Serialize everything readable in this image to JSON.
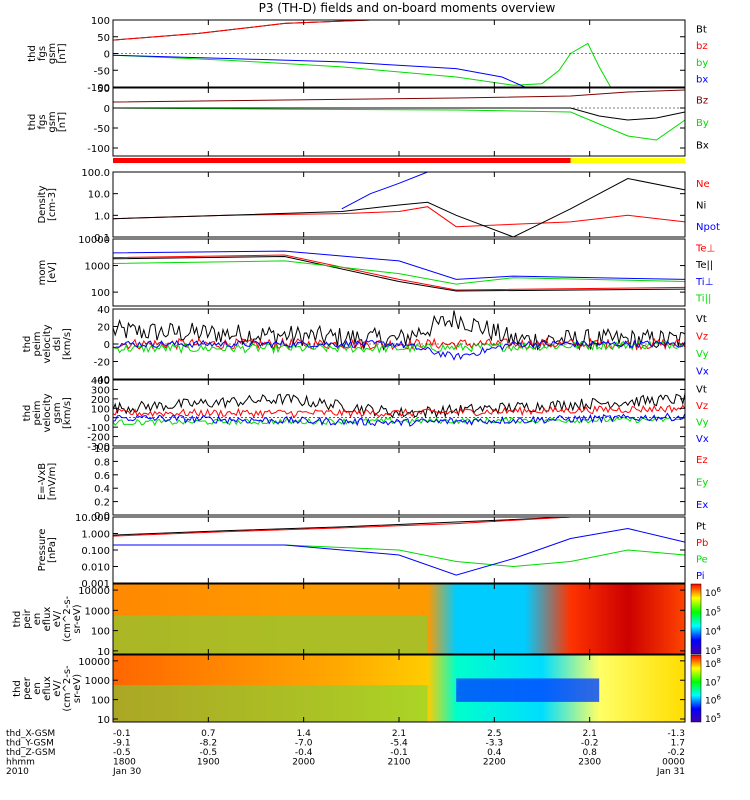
{
  "title": "P3 (TH-D) fields and on-board moments overview",
  "colors": {
    "black": "#000000",
    "red": "#ff0000",
    "green": "#00dd00",
    "blue": "#0000ff",
    "darkred": "#800000",
    "yellow": "#ffff00",
    "bg": "#ffffff"
  },
  "chart_data": [
    {
      "type": "line",
      "ylabel": [
        "thd",
        "fgs",
        "gsm",
        "[nT]"
      ],
      "ylim": [
        -100,
        100
      ],
      "yticks": [
        "100",
        "50",
        "0",
        "-50",
        "-100"
      ],
      "tickvals": [
        100,
        50,
        0,
        -50,
        -100
      ],
      "series": [
        {
          "name": "Bt",
          "color": "black",
          "x": [
            0,
            0.15,
            0.3,
            0.45
          ],
          "y": [
            40,
            60,
            90,
            120
          ]
        },
        {
          "name": "bz",
          "color": "red",
          "x": [
            0,
            0.15,
            0.3,
            0.45
          ],
          "y": [
            40,
            60,
            90,
            120
          ]
        },
        {
          "name": "by",
          "color": "green",
          "x": [
            0,
            0.2,
            0.4,
            0.6,
            0.7,
            0.75,
            0.78,
            0.8,
            0.83,
            0.85,
            0.87
          ],
          "y": [
            -5,
            -20,
            -40,
            -70,
            -95,
            -90,
            -50,
            0,
            30,
            -40,
            -150
          ]
        },
        {
          "name": "bx",
          "color": "blue",
          "x": [
            0,
            0.2,
            0.4,
            0.6,
            0.68,
            0.72
          ],
          "y": [
            -5,
            -15,
            -25,
            -45,
            -70,
            -100
          ]
        }
      ]
    },
    {
      "type": "line",
      "ylabel": [
        "thd",
        "fgs",
        "gsm",
        "[nT]"
      ],
      "ylim": [
        -120,
        50
      ],
      "yticks": [
        "50",
        "0",
        "-50",
        "-100"
      ],
      "tickvals": [
        50,
        0,
        -50,
        -100
      ],
      "series": [
        {
          "name": "Bz",
          "color": "darkred",
          "x": [
            0,
            0.3,
            0.6,
            0.8,
            0.9,
            1.0
          ],
          "y": [
            15,
            20,
            25,
            30,
            40,
            45
          ]
        },
        {
          "name": "By",
          "color": "green",
          "x": [
            0,
            0.3,
            0.6,
            0.8,
            0.85,
            0.9,
            0.95,
            1.0
          ],
          "y": [
            0,
            -3,
            -5,
            -10,
            -40,
            -70,
            -80,
            -30
          ]
        },
        {
          "name": "Bx",
          "color": "black",
          "x": [
            0,
            0.3,
            0.6,
            0.8,
            0.85,
            0.9,
            0.95,
            1.0
          ],
          "y": [
            0,
            0,
            0,
            0,
            -20,
            -30,
            -25,
            -10
          ]
        }
      ],
      "status_bar": [
        {
          "x": [
            0,
            0.8
          ],
          "color": "red"
        },
        {
          "x": [
            0.8,
            1.0
          ],
          "color": "yellow"
        }
      ]
    },
    {
      "type": "line",
      "ylabel": [
        "Density",
        "[cm-3]"
      ],
      "ylim_log": [
        0.1,
        100.0
      ],
      "yticks": [
        "100.0",
        "10.0",
        "1.0",
        "0.1"
      ],
      "tickvals": [
        100,
        10,
        1,
        0.1
      ],
      "series": [
        {
          "name": "Ne",
          "color": "red",
          "x": [
            0,
            0.2,
            0.4,
            0.5,
            0.55,
            0.6,
            0.8,
            0.9,
            1.0
          ],
          "y": [
            0.7,
            1.0,
            1.2,
            1.5,
            2.5,
            0.3,
            0.5,
            1.0,
            0.5
          ]
        },
        {
          "name": "Ni",
          "color": "black",
          "x": [
            0,
            0.2,
            0.4,
            0.5,
            0.55,
            0.6,
            0.7,
            0.8,
            0.9,
            1.0
          ],
          "y": [
            0.7,
            1.0,
            1.5,
            3.0,
            4.0,
            1.0,
            0.06,
            2.0,
            50,
            15
          ]
        },
        {
          "name": "Npot",
          "color": "blue",
          "x": [
            0.4,
            0.45,
            0.5,
            0.55
          ],
          "y": [
            2,
            10,
            30,
            100
          ]
        }
      ]
    },
    {
      "type": "line",
      "ylabel": [
        "mom",
        "[eV]"
      ],
      "ylim_log": [
        30,
        10000
      ],
      "yticks": [
        "10000",
        "1000",
        "100"
      ],
      "tickvals": [
        10000,
        1000,
        100
      ],
      "series": [
        {
          "name": "Te⊥",
          "color": "red",
          "x": [
            0,
            0.3,
            0.5,
            0.6,
            1.0
          ],
          "y": [
            2000,
            2500,
            300,
            120,
            150
          ]
        },
        {
          "name": "Te||",
          "color": "black",
          "x": [
            0,
            0.3,
            0.5,
            0.6,
            1.0
          ],
          "y": [
            1800,
            2200,
            250,
            110,
            130
          ]
        },
        {
          "name": "Ti⊥",
          "color": "blue",
          "x": [
            0,
            0.3,
            0.5,
            0.6,
            0.7,
            1.0
          ],
          "y": [
            3000,
            3500,
            1500,
            300,
            400,
            300
          ]
        },
        {
          "name": "Ti||",
          "color": "green",
          "x": [
            0,
            0.3,
            0.5,
            0.6,
            0.7,
            1.0
          ],
          "y": [
            1200,
            1500,
            500,
            200,
            350,
            250
          ]
        }
      ]
    },
    {
      "type": "line",
      "ylabel": [
        "thd",
        "peim",
        "velocity",
        "dsl",
        "[km/s]"
      ],
      "ylim": [
        -40,
        40
      ],
      "yticks": [
        "40",
        "20",
        "0",
        "-20",
        "-40"
      ],
      "tickvals": [
        40,
        20,
        0,
        -20,
        -40
      ],
      "series": [
        {
          "name": "Vt",
          "color": "black",
          "noise": 12,
          "x": [
            0,
            0.3,
            0.5,
            0.6,
            0.7,
            1.0
          ],
          "y": [
            15,
            10,
            5,
            30,
            5,
            5
          ]
        },
        {
          "name": "Vz",
          "color": "red",
          "noise": 6,
          "x": [
            0,
            0.5,
            1.0
          ],
          "y": [
            0,
            0,
            0
          ]
        },
        {
          "name": "Vy",
          "color": "green",
          "noise": 5,
          "x": [
            0,
            0.5,
            1.0
          ],
          "y": [
            -5,
            -5,
            0
          ]
        },
        {
          "name": "Vx",
          "color": "blue",
          "noise": 4,
          "x": [
            0,
            0.5,
            0.6,
            0.7,
            1.0
          ],
          "y": [
            0,
            0,
            -15,
            0,
            0
          ]
        }
      ]
    },
    {
      "type": "line",
      "ylabel": [
        "thd",
        "peim",
        "velocity",
        "gsm",
        "[km/s]"
      ],
      "ylim": [
        -300,
        400
      ],
      "yticks": [
        "400",
        "300",
        "200",
        "100",
        "0",
        "-100",
        "-200",
        "-300"
      ],
      "tickvals": [
        400,
        300,
        200,
        100,
        0,
        -100,
        -200,
        -300
      ],
      "series": [
        {
          "name": "Vt",
          "color": "black",
          "noise": 60,
          "x": [
            0,
            0.3,
            0.5,
            0.6,
            1.0
          ],
          "y": [
            100,
            200,
            50,
            80,
            200
          ]
        },
        {
          "name": "Vz",
          "color": "red",
          "noise": 40,
          "x": [
            0,
            0.5,
            1.0
          ],
          "y": [
            50,
            50,
            100
          ]
        },
        {
          "name": "Vy",
          "color": "green",
          "noise": 30,
          "x": [
            0,
            1.0
          ],
          "y": [
            -50,
            -20
          ]
        },
        {
          "name": "Vx",
          "color": "blue",
          "noise": 40,
          "x": [
            0,
            0.5,
            1.0
          ],
          "y": [
            0,
            -50,
            10
          ]
        }
      ]
    },
    {
      "type": "line",
      "ylabel": [
        "E=-VxB",
        "[mV/m]"
      ],
      "ylim": [
        0,
        1
      ],
      "yticks": [
        "1.0",
        "0.8",
        "0.6",
        "0.4",
        "0.2",
        "0.0"
      ],
      "tickvals": [
        1,
        0.8,
        0.6,
        0.4,
        0.2,
        0
      ],
      "series": [
        {
          "name": "Ez",
          "color": "red",
          "x": [],
          "y": []
        },
        {
          "name": "Ey",
          "color": "green",
          "x": [],
          "y": []
        },
        {
          "name": "Ex",
          "color": "blue",
          "x": [],
          "y": []
        }
      ]
    },
    {
      "type": "line",
      "ylabel": [
        "Pressure",
        "[nPa]"
      ],
      "ylim_log": [
        0.001,
        10
      ],
      "yticks": [
        "10.000",
        "1.000",
        "0.100",
        "0.010",
        "0.001"
      ],
      "tickvals": [
        10,
        1,
        0.1,
        0.01,
        0.001
      ],
      "series": [
        {
          "name": "Pt",
          "color": "black",
          "x": [
            0,
            0.2,
            0.4,
            0.6,
            0.8,
            1.0
          ],
          "y": [
            0.8,
            1.5,
            2.5,
            5.0,
            10,
            10
          ]
        },
        {
          "name": "Pb",
          "color": "red",
          "x": [
            0,
            0.2,
            0.4,
            0.6,
            0.8,
            1.0
          ],
          "y": [
            0.7,
            1.3,
            2.2,
            4.0,
            10,
            10
          ]
        },
        {
          "name": "Pe",
          "color": "green",
          "x": [
            0,
            0.3,
            0.5,
            0.6,
            0.7,
            0.8,
            0.9,
            1.0
          ],
          "y": [
            0.2,
            0.2,
            0.1,
            0.02,
            0.01,
            0.02,
            0.1,
            0.05
          ]
        },
        {
          "name": "Pi",
          "color": "blue",
          "x": [
            0,
            0.3,
            0.5,
            0.6,
            0.7,
            0.8,
            0.9,
            1.0
          ],
          "y": [
            0.2,
            0.2,
            0.05,
            0.003,
            0.03,
            0.5,
            2.0,
            0.3
          ]
        }
      ]
    },
    {
      "type": "heatmap",
      "ylabel": [
        "thd",
        "peir",
        "en",
        "eflux",
        "eV/",
        "(cm^2-s-",
        "sr-eV)"
      ],
      "yticks": [
        "10000",
        "1000",
        "100",
        "10"
      ],
      "tickvals": [
        10000,
        1000,
        100,
        10
      ],
      "ylim_log": [
        7,
        20000
      ],
      "colorbar": [
        "10^6",
        "10^5",
        "10^4",
        "10^3"
      ]
    },
    {
      "type": "heatmap",
      "ylabel": [
        "thd",
        "peer",
        "en",
        "eflux",
        "eV/",
        "(cm^2-s-",
        "sr-eV)"
      ],
      "yticks": [
        "10000",
        "1000",
        "100",
        "10"
      ],
      "tickvals": [
        10000,
        1000,
        100,
        10
      ],
      "ylim_log": [
        7,
        20000
      ],
      "colorbar": [
        "10^8",
        "10^7",
        "10^6",
        "10^5"
      ]
    }
  ],
  "xaxis": {
    "labels": [
      "thd_X-GSM",
      "thd_Y-GSM",
      "thd_Z-GSM",
      "hhmm",
      "2010"
    ],
    "columns": [
      [
        "-0.1",
        "-9.1",
        "-0.5",
        "1800",
        "Jan 30"
      ],
      [
        "0.7",
        "-8.2",
        "-0.5",
        "1900",
        ""
      ],
      [
        "1.4",
        "-7.0",
        "-0.4",
        "2000",
        ""
      ],
      [
        "2.1",
        "-5.4",
        "-0.1",
        "2100",
        ""
      ],
      [
        "2.5",
        "-3.3",
        "0.4",
        "2200",
        ""
      ],
      [
        "2.1",
        "-0.2",
        "0.8",
        "2300",
        ""
      ],
      [
        "-1.3",
        "1.7",
        "-0.2",
        "0000",
        "Jan 31"
      ]
    ]
  },
  "legends": [
    [
      "Bt",
      "bz",
      "by",
      "bx"
    ],
    [
      "Bz",
      "By",
      "Bx"
    ],
    [
      "Ne",
      "Ni",
      "Npot"
    ],
    [
      "Te⊥",
      "Te||",
      "Ti⊥",
      "Ti||"
    ],
    [
      "Vt",
      "Vz",
      "Vy",
      "Vx"
    ],
    [
      "Vt",
      "Vz",
      "Vy",
      "Vx"
    ],
    [
      "Ez",
      "Ey",
      "Ex"
    ],
    [
      "Pt",
      "Pb",
      "Pe",
      "Pi"
    ]
  ]
}
